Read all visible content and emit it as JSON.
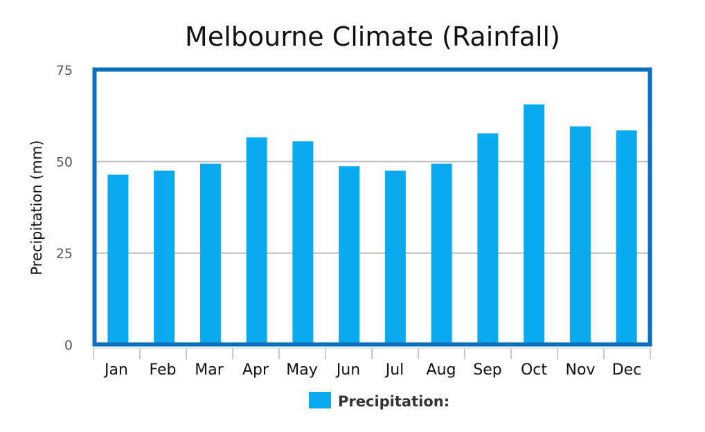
{
  "chart_data": {
    "type": "bar",
    "title": "Melbourne Climate (Rainfall)",
    "xlabel": "",
    "ylabel": "Precipitation (mm)",
    "ylim": [
      0,
      75
    ],
    "yticks": [
      "0",
      "25",
      "50",
      "75"
    ],
    "ytick_values": [
      0,
      25,
      50,
      75
    ],
    "grid": true,
    "categories": [
      "Jan",
      "Feb",
      "Mar",
      "Apr",
      "May",
      "Jun",
      "Jul",
      "Aug",
      "Sep",
      "Oct",
      "Nov",
      "Dec"
    ],
    "series": [
      {
        "name": "Precipitation:",
        "color": "#0aaaf0",
        "values": [
          46.4,
          47.5,
          49.4,
          56.6,
          55.5,
          48.7,
          47.5,
          49.4,
          57.7,
          65.6,
          59.6,
          58.5
        ]
      }
    ],
    "legend": {
      "position": "bottom",
      "label": "Precipitation:"
    },
    "frame_color": "#0a6fbd",
    "grid_color": "#bbbbbb"
  }
}
